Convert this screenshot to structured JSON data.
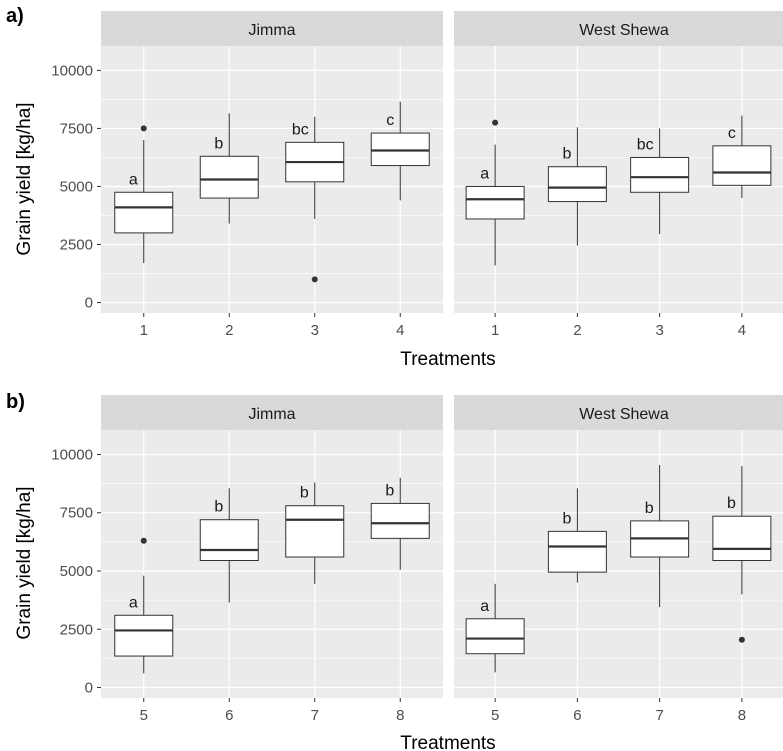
{
  "chart_data": [
    {
      "type": "boxplot",
      "panel_label": "a)",
      "xlabel": "Treatments",
      "ylabel": "Grain yield [kg/ha]",
      "ylim": [
        -450,
        11050
      ],
      "yticks": [
        0,
        2500,
        5000,
        7500,
        10000
      ],
      "ytick_labels": [
        "0",
        "2500",
        "5000",
        "7500",
        "10000"
      ],
      "grid": true,
      "facets": [
        {
          "name": "Jimma",
          "boxes": [
            {
              "x": "1",
              "whisker_low": 1700,
              "q1": 3000,
              "median": 4100,
              "q3": 4750,
              "whisker_high": 7000,
              "outliers": [
                7500
              ],
              "letter": "a"
            },
            {
              "x": "2",
              "whisker_low": 3400,
              "q1": 4500,
              "median": 5300,
              "q3": 6300,
              "whisker_high": 8150,
              "outliers": [],
              "letter": "b"
            },
            {
              "x": "3",
              "whisker_low": 3600,
              "q1": 5200,
              "median": 6050,
              "q3": 6900,
              "whisker_high": 8000,
              "outliers": [
                1000
              ],
              "letter": "bc"
            },
            {
              "x": "4",
              "whisker_low": 4400,
              "q1": 5900,
              "median": 6550,
              "q3": 7300,
              "whisker_high": 8650,
              "outliers": [],
              "letter": "c"
            }
          ]
        },
        {
          "name": "West Shewa",
          "boxes": [
            {
              "x": "1",
              "whisker_low": 1600,
              "q1": 3600,
              "median": 4450,
              "q3": 5000,
              "whisker_high": 6800,
              "outliers": [
                7750
              ],
              "letter": "a"
            },
            {
              "x": "2",
              "whisker_low": 2450,
              "q1": 4350,
              "median": 4950,
              "q3": 5850,
              "whisker_high": 7550,
              "outliers": [],
              "letter": "b"
            },
            {
              "x": "3",
              "whisker_low": 2950,
              "q1": 4750,
              "median": 5400,
              "q3": 6250,
              "whisker_high": 7500,
              "outliers": [],
              "letter": "bc"
            },
            {
              "x": "4",
              "whisker_low": 4500,
              "q1": 5050,
              "median": 5600,
              "q3": 6750,
              "whisker_high": 8050,
              "outliers": [],
              "letter": "c"
            }
          ]
        }
      ]
    },
    {
      "type": "boxplot",
      "panel_label": "b)",
      "xlabel": "Treatments",
      "ylabel": "Grain yield [kg/ha]",
      "ylim": [
        -450,
        11050
      ],
      "yticks": [
        0,
        2500,
        5000,
        7500,
        10000
      ],
      "ytick_labels": [
        "0",
        "2500",
        "5000",
        "7500",
        "10000"
      ],
      "grid": true,
      "facets": [
        {
          "name": "Jimma",
          "boxes": [
            {
              "x": "5",
              "whisker_low": 600,
              "q1": 1350,
              "median": 2450,
              "q3": 3100,
              "whisker_high": 4800,
              "outliers": [
                6300
              ],
              "letter": "a"
            },
            {
              "x": "6",
              "whisker_low": 3650,
              "q1": 5450,
              "median": 5900,
              "q3": 7200,
              "whisker_high": 8550,
              "outliers": [],
              "letter": "b"
            },
            {
              "x": "7",
              "whisker_low": 4450,
              "q1": 5600,
              "median": 7200,
              "q3": 7800,
              "whisker_high": 8800,
              "outliers": [],
              "letter": "b"
            },
            {
              "x": "8",
              "whisker_low": 5050,
              "q1": 6400,
              "median": 7050,
              "q3": 7900,
              "whisker_high": 9000,
              "outliers": [],
              "letter": "b"
            }
          ]
        },
        {
          "name": "West Shewa",
          "boxes": [
            {
              "x": "5",
              "whisker_low": 650,
              "q1": 1450,
              "median": 2100,
              "q3": 2950,
              "whisker_high": 4450,
              "outliers": [],
              "letter": "a"
            },
            {
              "x": "6",
              "whisker_low": 4500,
              "q1": 4950,
              "median": 6050,
              "q3": 6700,
              "whisker_high": 8550,
              "outliers": [],
              "letter": "b"
            },
            {
              "x": "7",
              "whisker_low": 3450,
              "q1": 5600,
              "median": 6400,
              "q3": 7150,
              "whisker_high": 9550,
              "outliers": [],
              "letter": "b"
            },
            {
              "x": "8",
              "whisker_low": 4000,
              "q1": 5450,
              "median": 5950,
              "q3": 7350,
              "whisker_high": 9500,
              "outliers": [
                2050
              ],
              "letter": "b"
            }
          ]
        }
      ]
    }
  ],
  "colors": {
    "panel_background": "#ebebeb",
    "strip_background": "#d9d9d9",
    "grid_major": "#ffffff",
    "box_fill": "#ffffff",
    "line": "#333333",
    "outlier": "#333333",
    "text": "#000000",
    "tick_text": "#4d4d4d"
  }
}
